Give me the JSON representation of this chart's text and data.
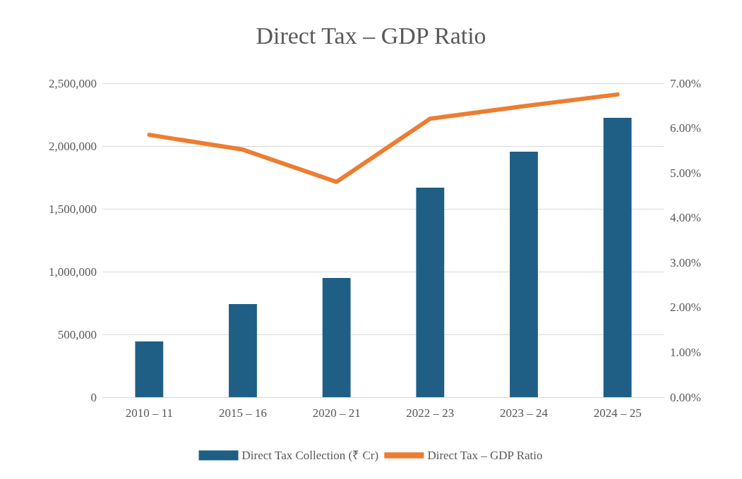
{
  "chart_data": {
    "type": "bar",
    "title": "Direct Tax – GDP Ratio",
    "categories": [
      "2010 – 11",
      "2015 – 16",
      "2020 – 21",
      "2022 – 23",
      "2023 – 24",
      "2024 – 25"
    ],
    "series": [
      {
        "name": "Direct Tax Collection (₹ Cr)",
        "color": "#1f5f85",
        "values": [
          444000,
          741000,
          949000,
          1668000,
          1955000,
          2225000
        ]
      },
      {
        "name": "Direct Tax – GDP Ratio",
        "type": "line",
        "axis": "y2",
        "color": "#ed7d31",
        "values": [
          5.85,
          5.52,
          4.8,
          6.21,
          6.49,
          6.75
        ]
      }
    ],
    "ylim": [
      0,
      2500000
    ],
    "yticks": [
      {
        "value": 0,
        "label": "0"
      },
      {
        "value": 500000,
        "label": "500,000"
      },
      {
        "value": 1000000,
        "label": "1,000,000"
      },
      {
        "value": 1500000,
        "label": "1,500,000"
      },
      {
        "value": 2000000,
        "label": "2,000,000"
      },
      {
        "value": 2500000,
        "label": "2,500,000"
      }
    ],
    "y2lim": [
      0,
      7
    ],
    "y2ticks": [
      {
        "value": 0,
        "label": "0.00%"
      },
      {
        "value": 1,
        "label": "1.00%"
      },
      {
        "value": 2,
        "label": "2.00%"
      },
      {
        "value": 3,
        "label": "3.00%"
      },
      {
        "value": 4,
        "label": "4.00%"
      },
      {
        "value": 5,
        "label": "5.00%"
      },
      {
        "value": 6,
        "label": "6.00%"
      },
      {
        "value": 7,
        "label": "7.00%"
      }
    ],
    "grid": "y",
    "legend": "bottom",
    "marker": "none",
    "line_style": "solid"
  }
}
